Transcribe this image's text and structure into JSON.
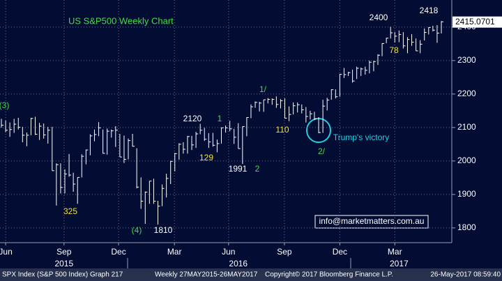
{
  "chart_data": {
    "type": "ohlc",
    "title": "US S&P500 Weekly Chart",
    "high": [
      2126,
      2121,
      2115,
      2126,
      2129,
      2102,
      2085,
      2129,
      2132,
      2114,
      2112,
      2102,
      2102,
      1993,
      1993,
      1975,
      2021,
      1965,
      1951,
      2020,
      2034,
      2080,
      2094,
      2116,
      2094,
      2097,
      2094,
      2104,
      2081,
      2076,
      2067,
      2081,
      2038,
      1951,
      1909,
      1940,
      1947,
      1881,
      1930,
      1962,
      2000,
      2024,
      2053,
      2056,
      2075,
      2075,
      2087,
      2111,
      2099,
      2083,
      2084,
      2064,
      2100,
      2106,
      2120,
      2096,
      2113,
      2103,
      2131,
      2169,
      2178,
      2177,
      2183,
      2188,
      2187,
      2193,
      2185,
      2187,
      2163,
      2175,
      2175,
      2169,
      2161,
      2150,
      2147,
      2131,
      2183,
      2189,
      2214,
      2214,
      2260,
      2278,
      2266,
      2273,
      2282,
      2279,
      2282,
      2300,
      2299,
      2319,
      2352,
      2368,
      2401,
      2385,
      2390,
      2385,
      2370,
      2379,
      2366,
      2361,
      2396,
      2400,
      2404,
      2406,
      2418
    ],
    "low": [
      2100,
      2086,
      2072,
      2084,
      2094,
      2056,
      2044,
      2077,
      2078,
      2063,
      2067,
      2052,
      1971,
      1867,
      1903,
      1903,
      1953,
      1908,
      1872,
      1951,
      1990,
      2017,
      2059,
      2074,
      2022,
      2019,
      2070,
      2042,
      2012,
      1994,
      2005,
      2043,
      1918,
      1857,
      1812,
      1872,
      1872,
      1810,
      1865,
      1891,
      1931,
      1969,
      2004,
      2022,
      2022,
      2033,
      2039,
      2080,
      2060,
      2039,
      2043,
      2026,
      2052,
      2085,
      2089,
      2051,
      2037,
      1991,
      2074,
      2128,
      2159,
      2148,
      2147,
      2172,
      2168,
      2159,
      2157,
      2127,
      2119,
      2139,
      2145,
      2142,
      2115,
      2124,
      2122,
      2083,
      2084,
      2151,
      2183,
      2187,
      2192,
      2248,
      2254,
      2234,
      2245,
      2254,
      2258,
      2262,
      2268,
      2287,
      2313,
      2352,
      2366,
      2354,
      2355,
      2336,
      2322,
      2344,
      2329,
      2322,
      2360,
      2378,
      2387,
      2353,
      2381
    ],
    "close": [
      2107,
      2092,
      2094,
      2110,
      2101,
      2077,
      2077,
      2127,
      2080,
      2104,
      2078,
      2092,
      1971,
      1989,
      1921,
      1961,
      1958,
      1931,
      1951,
      2014,
      2033,
      2075,
      2079,
      2099,
      2023,
      2089,
      2090,
      2092,
      2012,
      2005,
      2061,
      2044,
      1922,
      1880,
      1907,
      1940,
      1880,
      1865,
      1918,
      1948,
      1999,
      2022,
      2050,
      2035,
      2073,
      2048,
      2081,
      2092,
      2065,
      2057,
      2047,
      2052,
      2099,
      2099,
      2096,
      2071,
      2037,
      2103,
      2130,
      2162,
      2175,
      2173,
      2183,
      2184,
      2184,
      2169,
      2180,
      2128,
      2139,
      2165,
      2168,
      2153,
      2133,
      2141,
      2126,
      2085,
      2164,
      2182,
      2213,
      2192,
      2259,
      2258,
      2264,
      2239,
      2277,
      2275,
      2271,
      2295,
      2297,
      2316,
      2351,
      2367,
      2383,
      2373,
      2378,
      2344,
      2363,
      2355,
      2329,
      2349,
      2384,
      2399,
      2391,
      2382,
      2416
    ],
    "ylim": [
      1756,
      2481
    ],
    "yticks": [
      1800,
      1900,
      2000,
      2100,
      2200,
      2300,
      2400
    ],
    "xticks": [
      {
        "value": 1,
        "label": "Jun"
      },
      {
        "value": 14.8,
        "label": "Sep"
      },
      {
        "value": 27.7,
        "label": "Dec"
      },
      {
        "value": 40.9,
        "label": "Mar"
      },
      {
        "value": 53.7,
        "label": "Jun"
      },
      {
        "value": 66.9,
        "label": "Sep"
      },
      {
        "value": 80,
        "label": "Dec"
      },
      {
        "value": 93,
        "label": "Mar"
      }
    ],
    "years": [
      {
        "value": 14.8,
        "label": "2015"
      },
      {
        "value": 56,
        "label": "2016"
      },
      {
        "value": 94,
        "label": "2017"
      }
    ],
    "last_price": 2415.0701,
    "grid": true,
    "color": "#ffffff",
    "annotations": [
      "(3)",
      "325",
      "(4)",
      "1810",
      "2120",
      "129",
      "1",
      "1991",
      "2",
      "1/",
      "110",
      "2/",
      "Trump's victory",
      "2400",
      "78",
      "2418"
    ],
    "email": "info@marketmatters.com.au",
    "footer": [
      "SPX Index (S&P 500 Index) Graph 217",
      "Weekly 27MAY2015-26MAY2017",
      "Copyright© 2017 Bloomberg Finance L.P.",
      "26-May-2017 08:59:40"
    ]
  }
}
